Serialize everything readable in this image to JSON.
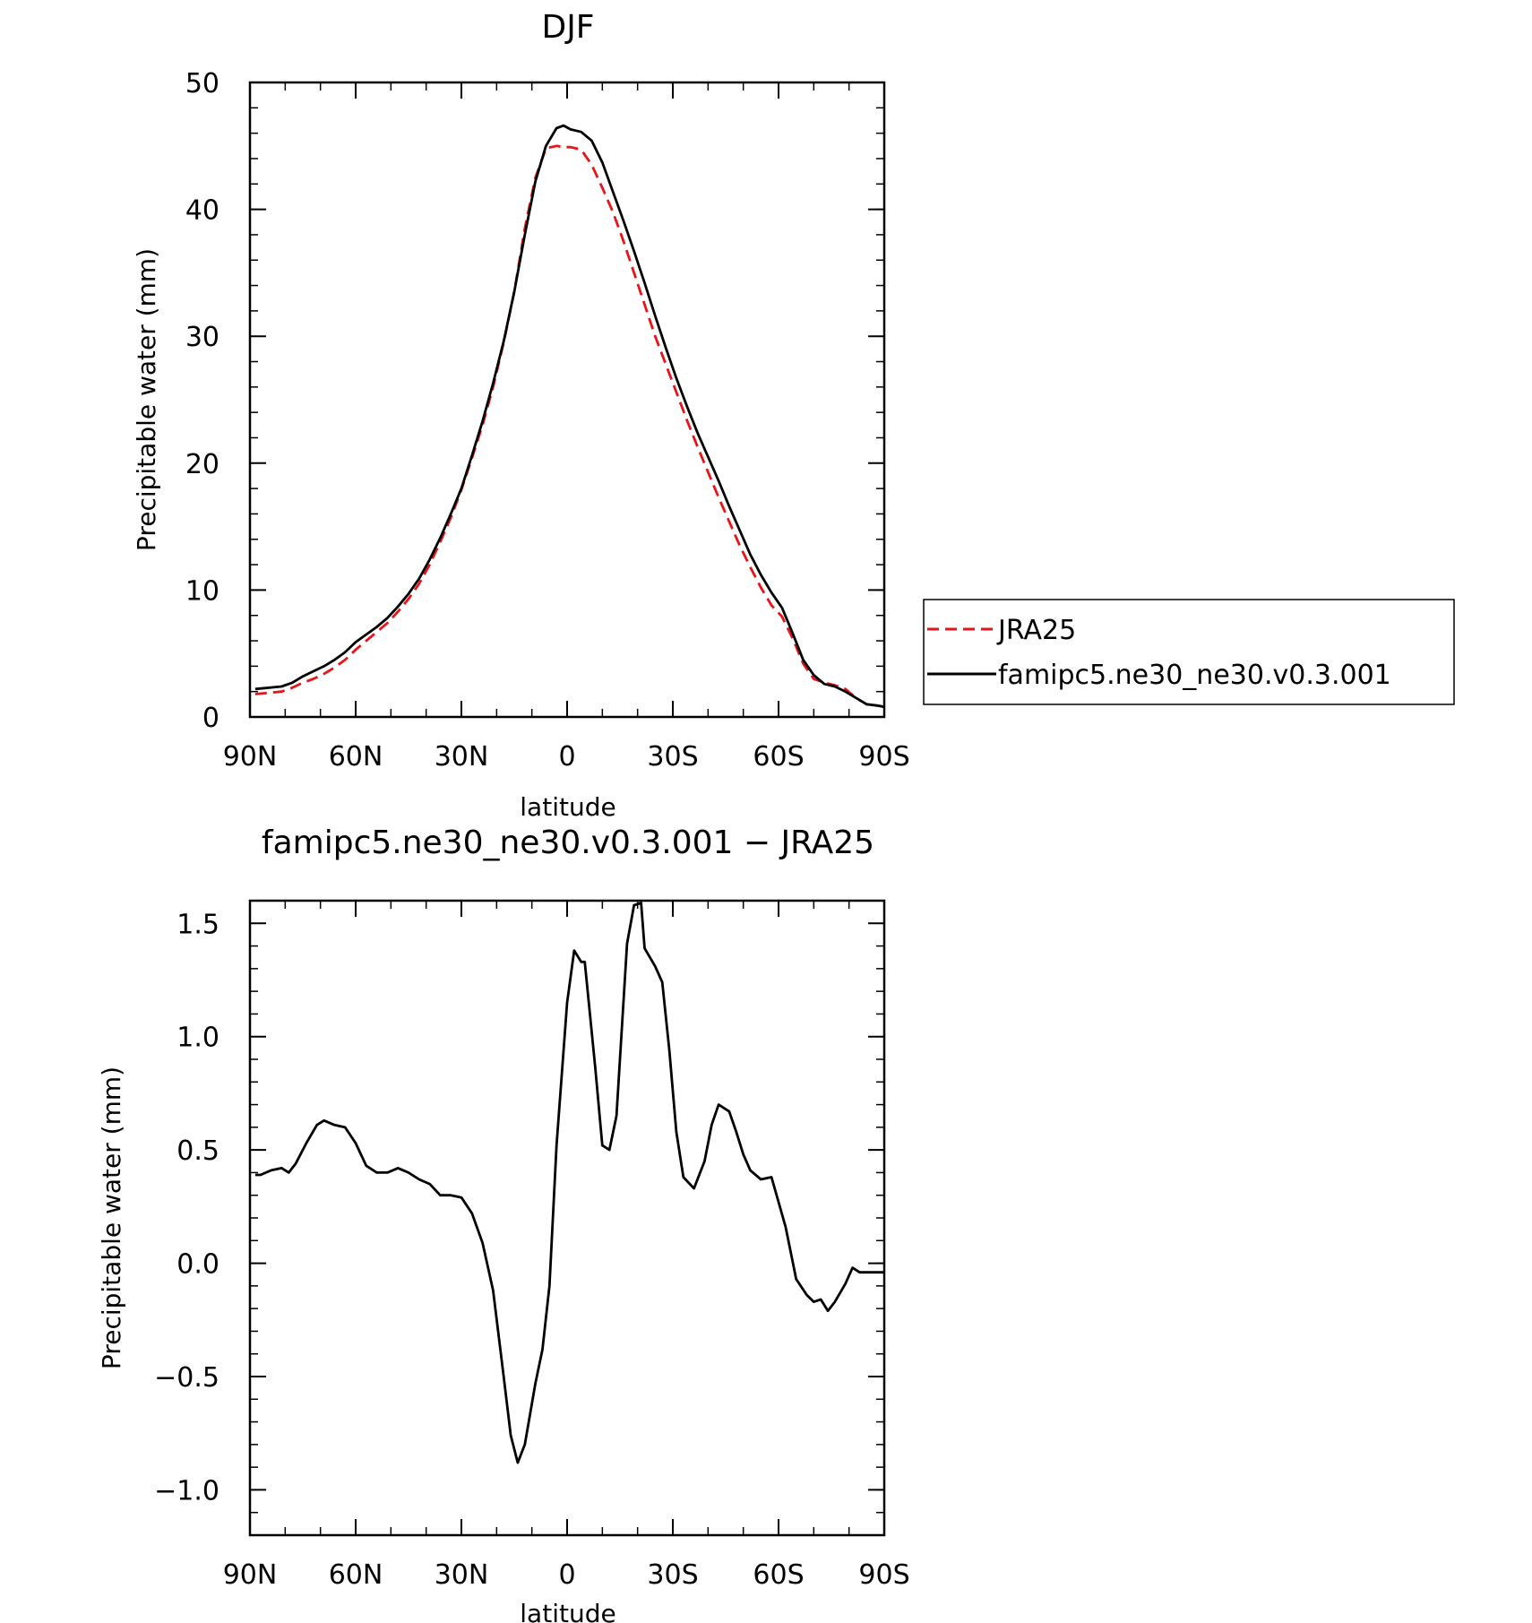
{
  "chart_data": [
    {
      "type": "line",
      "title": "DJF",
      "xlabel": "latitude",
      "ylabel": "Precipitable water (mm)",
      "xlim": [
        90,
        -90
      ],
      "ylim": [
        0,
        50
      ],
      "xticks": [
        90,
        60,
        30,
        0,
        -30,
        -60,
        -90
      ],
      "xtick_labels": [
        "90N",
        "60N",
        "30N",
        "0",
        "30S",
        "60S",
        "90S"
      ],
      "yticks": [
        0,
        10,
        20,
        30,
        40,
        50
      ],
      "ytick_labels": [
        "0",
        "10",
        "20",
        "30",
        "40",
        "50"
      ],
      "grid": false,
      "legend": "right",
      "series": [
        {
          "name": "JRA25",
          "color": "#e8141a",
          "dash": "dashed",
          "x": [
            88.5,
            81,
            78,
            75,
            72,
            69,
            66,
            63,
            60,
            57,
            54,
            51,
            48,
            45,
            42,
            39,
            36,
            33,
            30,
            27,
            24,
            21,
            18,
            15,
            12,
            9,
            6,
            3,
            1,
            -1,
            -4,
            -7,
            -10,
            -13,
            -16,
            -19,
            -22,
            -25,
            -28,
            -31,
            -34,
            -37,
            -40,
            -43,
            -46,
            -49,
            -52,
            -55,
            -58,
            -61,
            -64,
            -67,
            -70,
            -73,
            -76,
            -79,
            -82,
            -85,
            -88,
            -90
          ],
          "y": [
            1.8,
            2.0,
            2.3,
            2.7,
            3.0,
            3.4,
            3.9,
            4.5,
            5.3,
            6.0,
            6.7,
            7.4,
            8.3,
            9.3,
            10.5,
            12.0,
            13.8,
            15.7,
            17.9,
            20.4,
            23.0,
            26.0,
            29.5,
            33.5,
            38.5,
            42.5,
            44.8,
            45.0,
            44.9,
            44.9,
            44.7,
            43.5,
            41.7,
            39.8,
            37.5,
            35.0,
            32.5,
            30.0,
            27.8,
            25.6,
            23.4,
            21.3,
            19.3,
            17.3,
            15.4,
            13.5,
            11.8,
            10.2,
            8.8,
            7.9,
            6.2,
            4.2,
            3.0,
            2.7,
            2.5,
            2.2,
            1.5,
            1.0,
            0.9,
            0.8
          ]
        },
        {
          "name": "famipc5.ne30_ne30.v0.3.001",
          "color": "#000000",
          "dash": "solid",
          "x": [
            88.5,
            81,
            78,
            75,
            72,
            69,
            66,
            63,
            60,
            57,
            54,
            51,
            48,
            45,
            42,
            39,
            36,
            33,
            30,
            27,
            24,
            21,
            18,
            15,
            12,
            9,
            6,
            3,
            1,
            -1,
            -4,
            -7,
            -10,
            -13,
            -16,
            -19,
            -22,
            -25,
            -28,
            -31,
            -34,
            -37,
            -40,
            -43,
            -46,
            -49,
            -52,
            -55,
            -58,
            -61,
            -64,
            -67,
            -70,
            -73,
            -76,
            -79,
            -82,
            -85,
            -88,
            -90
          ],
          "y": [
            2.2,
            2.4,
            2.7,
            3.2,
            3.6,
            4.0,
            4.5,
            5.1,
            5.9,
            6.5,
            7.1,
            7.8,
            8.7,
            9.7,
            10.9,
            12.4,
            14.1,
            16.0,
            18.0,
            20.6,
            23.3,
            26.3,
            29.6,
            33.5,
            38.0,
            42.2,
            45.0,
            46.4,
            46.6,
            46.3,
            46.1,
            45.4,
            43.7,
            41.4,
            39.1,
            36.7,
            34.2,
            31.6,
            29.1,
            26.7,
            24.5,
            22.4,
            20.5,
            18.6,
            16.6,
            14.7,
            12.8,
            11.2,
            9.8,
            8.6,
            6.6,
            4.5,
            3.3,
            2.6,
            2.4,
            2.0,
            1.5,
            1.0,
            0.9,
            0.8
          ]
        }
      ]
    },
    {
      "type": "line",
      "title": "famipc5.ne30_ne30.v0.3.001 − JRA25",
      "xlabel": "latitude",
      "ylabel": "Precipitable water (mm)",
      "xlim": [
        90,
        -90
      ],
      "ylim": [
        -1.2,
        1.6
      ],
      "xticks": [
        90,
        60,
        30,
        0,
        -30,
        -60,
        -90
      ],
      "xtick_labels": [
        "90N",
        "60N",
        "30N",
        "0",
        "30S",
        "60S",
        "90S"
      ],
      "yticks": [
        -1.0,
        -0.5,
        0.0,
        0.5,
        1.0,
        1.5
      ],
      "ytick_labels": [
        "−1.0",
        "−0.5",
        "0.0",
        "0.5",
        "1.0",
        "1.5"
      ],
      "grid": false,
      "series": [
        {
          "color": "#000000",
          "dash": "solid",
          "x": [
            88.5,
            87,
            84,
            81,
            79,
            77,
            74,
            71,
            69,
            66,
            63,
            60,
            57,
            54,
            51,
            48,
            45,
            42,
            39,
            36,
            33,
            30,
            27,
            24,
            21,
            18,
            16,
            14,
            12,
            9,
            7,
            5,
            3,
            0,
            -2,
            -4,
            -5,
            -8,
            -10,
            -12,
            -14,
            -17,
            -19,
            -21,
            -22,
            -25,
            -27,
            -29,
            -31,
            -33,
            -36,
            -39,
            -41,
            -43,
            -46,
            -48,
            -50,
            -52,
            -55,
            -58,
            -60,
            -62,
            -65,
            -68,
            -70,
            -72,
            -74,
            -76,
            -79,
            -81,
            -83,
            -86,
            -88,
            -90
          ],
          "y": [
            0.39,
            0.39,
            0.41,
            0.42,
            0.4,
            0.44,
            0.53,
            0.61,
            0.63,
            0.61,
            0.6,
            0.53,
            0.43,
            0.4,
            0.4,
            0.42,
            0.4,
            0.37,
            0.35,
            0.3,
            0.3,
            0.29,
            0.22,
            0.09,
            -0.12,
            -0.5,
            -0.76,
            -0.88,
            -0.8,
            -0.53,
            -0.38,
            -0.1,
            0.52,
            1.15,
            1.38,
            1.33,
            1.33,
            0.86,
            0.52,
            0.5,
            0.65,
            1.41,
            1.58,
            1.59,
            1.39,
            1.31,
            1.24,
            0.94,
            0.58,
            0.38,
            0.33,
            0.45,
            0.61,
            0.7,
            0.67,
            0.58,
            0.48,
            0.41,
            0.37,
            0.38,
            0.27,
            0.16,
            -0.07,
            -0.14,
            -0.17,
            -0.16,
            -0.21,
            -0.17,
            -0.09,
            -0.02,
            -0.04,
            -0.04,
            -0.04,
            -0.04
          ]
        }
      ]
    }
  ]
}
